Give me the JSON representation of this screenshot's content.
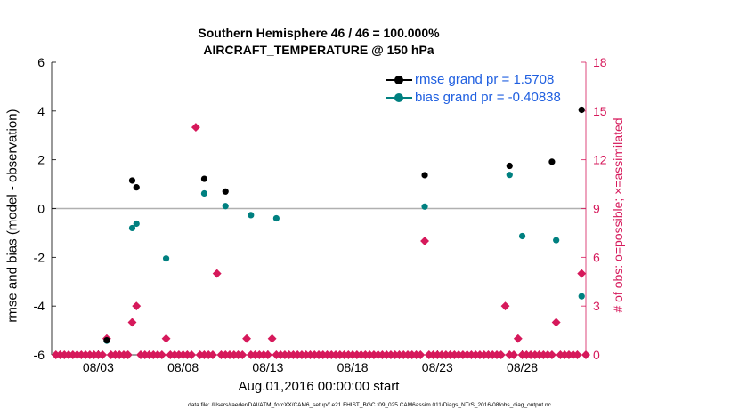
{
  "chart_data": {
    "type": "scatter",
    "title": "Southern Hemisphere 46 / 46 = 100.000%",
    "subtitle": "AIRCRAFT_TEMPERATURE @ 150 hPa",
    "xlabel": "Aug.01,2016 00:00:00 start",
    "ylabel": "rmse and bias (model - observation)",
    "ylabel_right": "# of obs: o=possible; ×=assimilated",
    "footer": "data file: /Users/raeder/DAI/ATM_forcXX/CAM6_setup/f.e21.FHIST_BGC.f09_025.CAM6assim.011/Diags_NTrS_2016-08/obs_diag_output.nc",
    "xlim": [
      0.25,
      31.75
    ],
    "ylim": [
      -6,
      6
    ],
    "ylim_right": [
      0,
      18
    ],
    "xtick_values": [
      3,
      8,
      13,
      18,
      23,
      28
    ],
    "xticks": [
      "08/03",
      "08/08",
      "08/13",
      "08/18",
      "08/23",
      "08/28"
    ],
    "yticks": [
      -6,
      -4,
      -2,
      0,
      2,
      4,
      6
    ],
    "yticks_right": [
      0,
      3,
      6,
      9,
      12,
      15,
      18
    ],
    "legend_position": "top-right",
    "colors": {
      "rmse": "#000000",
      "bias": "#008080",
      "obs": "#d6195b",
      "zero_line": "#b0b0b0"
    },
    "series": [
      {
        "name": "rmse grand pr = 1.5708",
        "axis": "left",
        "points": [
          [
            3.5,
            -5.4
          ],
          [
            5.0,
            1.15
          ],
          [
            5.25,
            0.87
          ],
          [
            9.25,
            1.22
          ],
          [
            10.5,
            0.7
          ],
          [
            22.25,
            1.37
          ],
          [
            27.25,
            1.75
          ],
          [
            29.75,
            1.92
          ],
          [
            31.5,
            4.05
          ]
        ]
      },
      {
        "name": "bias grand pr = -0.40838",
        "axis": "left",
        "points": [
          [
            3.5,
            -5.42
          ],
          [
            5.0,
            -0.8
          ],
          [
            5.25,
            -0.62
          ],
          [
            7.0,
            -2.05
          ],
          [
            9.25,
            0.62
          ],
          [
            10.5,
            0.1
          ],
          [
            12.0,
            -0.27
          ],
          [
            13.5,
            -0.4
          ],
          [
            22.25,
            0.08
          ],
          [
            27.25,
            1.38
          ],
          [
            28.0,
            -1.13
          ],
          [
            30.0,
            -1.3
          ],
          [
            31.5,
            -3.6
          ]
        ]
      },
      {
        "name": "obs assimilated",
        "axis": "right",
        "x_start": 0.5,
        "x_step": 0.25,
        "values": [
          0,
          0,
          0,
          0,
          0,
          0,
          0,
          0,
          0,
          0,
          0,
          0,
          1,
          0,
          0,
          0,
          0,
          0,
          2,
          3,
          0,
          0,
          0,
          0,
          0,
          0,
          1,
          0,
          0,
          0,
          0,
          0,
          0,
          14,
          0,
          0,
          0,
          0,
          5,
          0,
          0,
          0,
          0,
          0,
          0,
          1,
          0,
          0,
          0,
          0,
          0,
          1,
          0,
          0,
          0,
          0,
          0,
          0,
          0,
          0,
          0,
          0,
          0,
          0,
          0,
          0,
          0,
          0,
          0,
          0,
          0,
          0,
          0,
          0,
          0,
          0,
          0,
          0,
          0,
          0,
          0,
          0,
          0,
          0,
          0,
          0,
          0,
          7,
          0,
          0,
          0,
          0,
          0,
          0,
          0,
          0,
          0,
          0,
          0,
          0,
          0,
          0,
          0,
          0,
          0,
          0,
          3,
          0,
          0,
          1,
          0,
          0,
          0,
          0,
          0,
          0,
          0,
          0,
          2,
          0,
          0,
          0,
          0,
          0,
          5,
          0
        ]
      }
    ]
  }
}
